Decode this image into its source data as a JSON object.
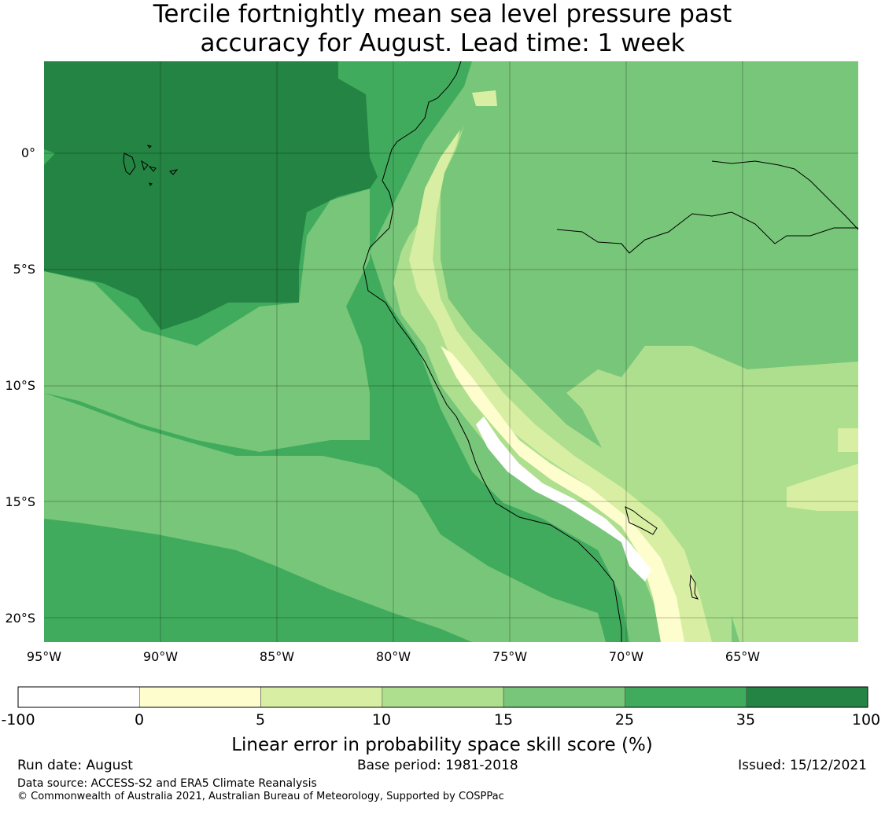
{
  "title": {
    "line1": "Tercile fortnightly mean sea level pressure past",
    "line2": "accuracy for August. Lead time: 1 week"
  },
  "map": {
    "lat_labels": [
      "0°",
      "5°S",
      "10°S",
      "15°S",
      "20°S"
    ],
    "lon_labels": [
      "95°W",
      "90°W",
      "85°W",
      "80°W",
      "75°W",
      "70°W",
      "65°W"
    ],
    "extent": {
      "lon": [
        -95,
        -60
      ],
      "lat": [
        4,
        -21
      ]
    }
  },
  "colorbar": {
    "tick_labels": [
      "-100",
      "0",
      "5",
      "10",
      "15",
      "25",
      "35",
      "100"
    ],
    "colors": [
      "#ffffff",
      "#fdfdcd",
      "#d8efa3",
      "#addf8e",
      "#78c679",
      "#41ab5d",
      "#238443"
    ],
    "label": "Linear error in probability space skill score (%)"
  },
  "footer": {
    "run_date": "Run date: August",
    "base_period": "Base period: 1981-2018",
    "issued": "Issued: 15/12/2021",
    "data_source": "Data source: ACCESS-S2 and ERA5 Climate Reanalysis",
    "copyright": "© Commonwealth of Australia 2021, Australian Bureau of Meteorology, Supported by COSPPac"
  }
}
